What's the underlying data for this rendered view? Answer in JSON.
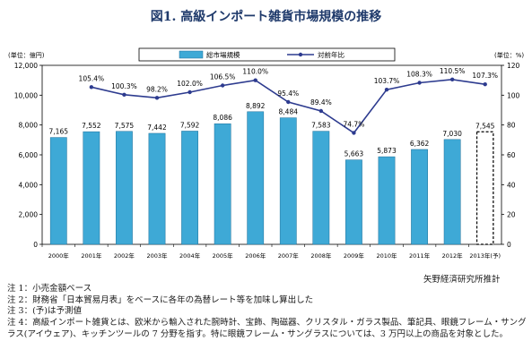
{
  "title": "図1. 高級インポート雑貨市場規模の推移",
  "source": "矢野経済研究所推計",
  "notes": [
    "注 1：小売金額ベース",
    "注 2：財務省「日本貿易月表」をベースに各年の為替レート等を加味し算出した",
    "注 3：(予)は予測値",
    "注 4：高級インポート雑貨とは、欧米から輸入された腕時計、宝飾、陶磁器、クリスタル・ガラス製品、筆記具、眼鏡フレーム・サングラス(アイウェア)、キッチンツールの 7 分野を指す。特に眼鏡フレーム・サングラスについては、3 万円以上の商品を対象とした。"
  ],
  "chart_data": {
    "type": "bar",
    "categories": [
      "2000年",
      "2001年",
      "2002年",
      "2003年",
      "2004年",
      "2005年",
      "2006年",
      "2007年",
      "2008年",
      "2009年",
      "2010年",
      "2011年",
      "2012年",
      "2013年(予)"
    ],
    "series": [
      {
        "name": "総市場規模",
        "type": "bar",
        "axis": "left",
        "values": [
          7165,
          7552,
          7575,
          7442,
          7592,
          8086,
          8892,
          8484,
          7583,
          5663,
          5873,
          6362,
          7030,
          7545
        ],
        "labels": [
          "7,165",
          "7,552",
          "7,575",
          "7,442",
          "7,592",
          "8,086",
          "8,892",
          "8,484",
          "7,583",
          "5,663",
          "5,873",
          "6,362",
          "7,030",
          "7,545"
        ],
        "color": "#3ea9d6",
        "forecast_index": 13
      },
      {
        "name": "対前年比",
        "type": "line",
        "axis": "right",
        "values": [
          null,
          105.4,
          100.3,
          98.2,
          102.0,
          106.5,
          110.0,
          95.4,
          89.4,
          74.7,
          103.7,
          108.3,
          110.5,
          107.3
        ],
        "labels": [
          "",
          "105.4%",
          "100.3%",
          "98.2%",
          "102.0%",
          "106.5%",
          "110.0%",
          "95.4%",
          "89.4%",
          "74.7%",
          "103.7%",
          "108.3%",
          "110.5%",
          "107.3%"
        ],
        "color": "#2d3b8f"
      }
    ],
    "ylabel_left": "(単位：億円)",
    "ylabel_right": "(単位：%)",
    "ylim_left": [
      0,
      12000
    ],
    "ylim_right": [
      0,
      120
    ],
    "yticks_left": [
      "0",
      "2,000",
      "4,000",
      "6,000",
      "8,000",
      "10,000",
      "12,000"
    ],
    "yticks_right": [
      "0",
      "20",
      "40",
      "60",
      "80",
      "100",
      "120"
    ],
    "grid": false,
    "legend_position": "top"
  }
}
